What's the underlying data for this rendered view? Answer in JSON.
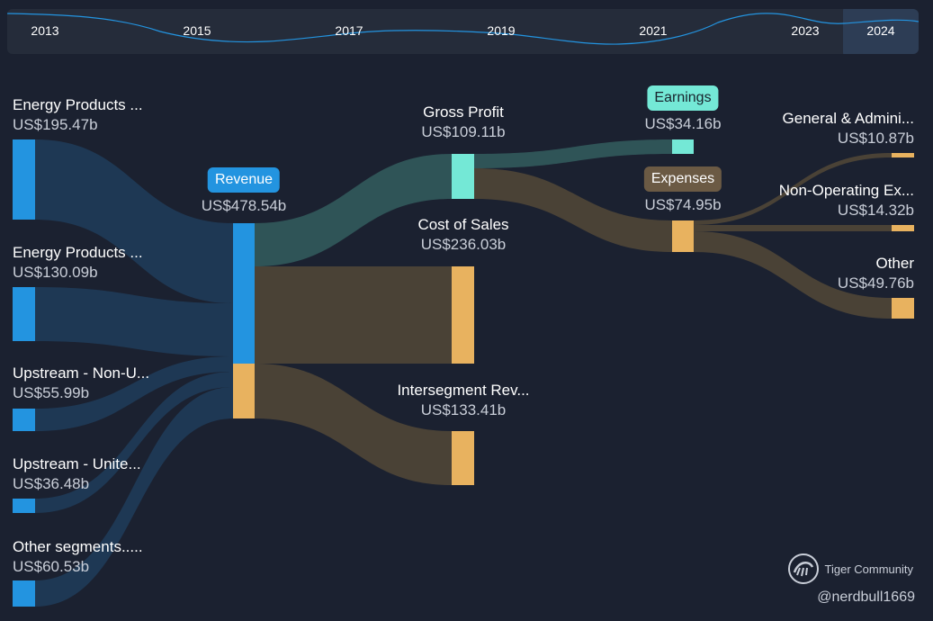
{
  "timeline": {
    "years": [
      "2013",
      "2015",
      "2017",
      "2019",
      "2021",
      "2023",
      "2024"
    ],
    "selected": "2024"
  },
  "nodes": {
    "source1": {
      "name": "Energy Products ...",
      "value": "US$195.47b"
    },
    "source2": {
      "name": "Energy Products ...",
      "value": "US$130.09b"
    },
    "source3": {
      "name": "Upstream - Non-U...",
      "value": "US$55.99b"
    },
    "source4": {
      "name": "Upstream - Unite...",
      "value": "US$36.48b"
    },
    "source5": {
      "name": "Other segments.....",
      "value": "US$60.53b"
    },
    "revenue": {
      "name": "Revenue",
      "value": "US$478.54b"
    },
    "gross_profit": {
      "name": "Gross Profit",
      "value": "US$109.11b"
    },
    "cost_of_sales": {
      "name": "Cost of Sales",
      "value": "US$236.03b"
    },
    "intersegment": {
      "name": "Intersegment Rev...",
      "value": "US$133.41b"
    },
    "earnings": {
      "name": "Earnings",
      "value": "US$34.16b"
    },
    "expenses": {
      "name": "Expenses",
      "value": "US$74.95b"
    },
    "general_admin": {
      "name": "General & Admini...",
      "value": "US$10.87b"
    },
    "non_operating": {
      "name": "Non-Operating Ex...",
      "value": "US$14.32b"
    },
    "other": {
      "name": "Other",
      "value": "US$49.76b"
    }
  },
  "colors": {
    "background": "#1b2130",
    "source_bar": "#2394e0",
    "source_flow": "#1f3a56",
    "profit_bar": "#74e8d6",
    "profit_flow": "#2f5457",
    "cost_bar": "#e8b25f",
    "cost_flow": "#4a4236"
  },
  "watermark": {
    "brand": "Tiger Community",
    "user": "@nerdbull1669"
  }
}
